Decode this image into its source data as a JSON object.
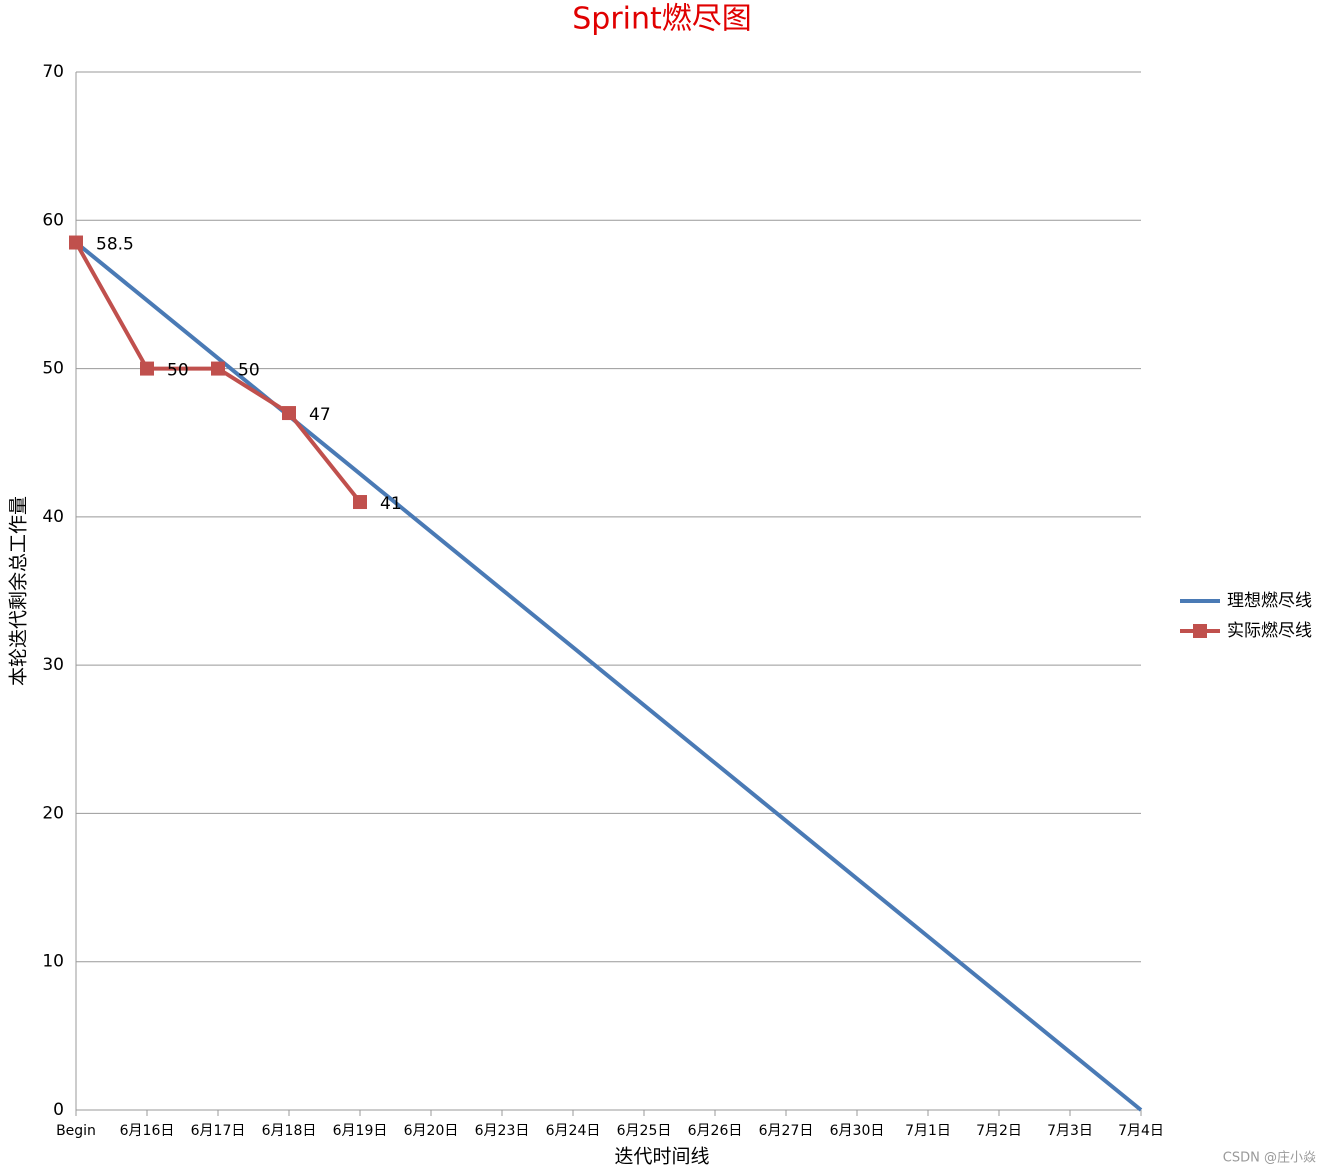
{
  "chart_data": {
    "type": "line",
    "title": "Sprint燃尽图",
    "x_label": "迭代时间线",
    "y_label": "本轮迭代剩余总工作量",
    "categories": [
      "Begin",
      "6月16日",
      "6月17日",
      "6月18日",
      "6月19日",
      "6月20日",
      "6月23日",
      "6月24日",
      "6月25日",
      "6月26日",
      "6月27日",
      "6月30日",
      "7月1日",
      "7月2日",
      "7月3日",
      "7月4日"
    ],
    "series": [
      {
        "name": "理想燃尽线",
        "color": "#4a7ab5",
        "marker": "none",
        "data_labels": false,
        "values": [
          58.5,
          54.6,
          50.7,
          46.8,
          42.9,
          39,
          35.1,
          31.2,
          27.3,
          23.4,
          19.5,
          15.6,
          11.7,
          7.8,
          3.9,
          0
        ]
      },
      {
        "name": "实际燃尽线",
        "color": "#c0504d",
        "marker": "square",
        "data_labels": true,
        "values": [
          58.5,
          50,
          50,
          47,
          41,
          null,
          null,
          null,
          null,
          null,
          null,
          null,
          null,
          null,
          null,
          null
        ]
      }
    ],
    "ylim": [
      0,
      70
    ],
    "yticks": [
      0,
      10,
      20,
      30,
      40,
      50,
      60,
      70
    ],
    "grid": true,
    "legend": "right",
    "watermark": "CSDN @庄小焱"
  }
}
